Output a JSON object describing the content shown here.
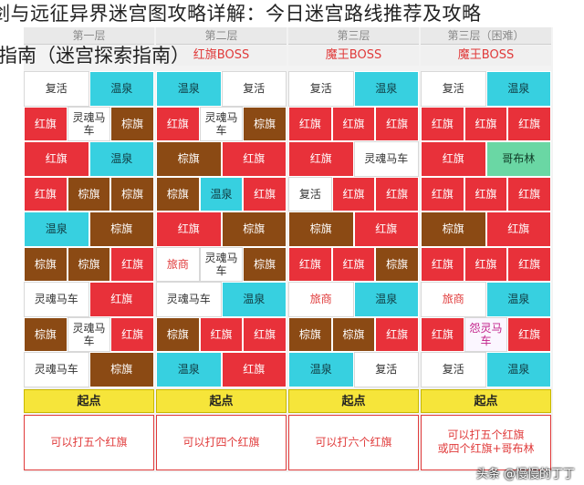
{
  "title": {
    "line1": "剑与远征异界迷宫图攻略详解：今日迷宫路线推荐及攻略",
    "line2": "指南（迷宫探索指南）"
  },
  "watermark": "头条 @慢慢的丁丁",
  "columns": [
    {
      "header": "第一层",
      "boss": "",
      "rows": [
        [
          "复活",
          "温泉"
        ],
        [
          "红旗",
          "灵魂马车",
          "棕旗"
        ],
        [
          "红旗",
          "温泉"
        ],
        [
          "红旗",
          "棕旗",
          "棕旗"
        ],
        [
          "温泉",
          "棕旗"
        ],
        [
          "棕旗",
          "棕旗",
          "红旗"
        ],
        [
          "灵魂马车",
          "红旗"
        ],
        [
          "棕旗",
          "灵魂马车",
          "红旗"
        ],
        [
          "灵魂马车",
          "棕旗"
        ]
      ],
      "start": "起点",
      "note": "可以打五个红旗"
    },
    {
      "header": "第二层",
      "boss": "红旗BOSS",
      "rows": [
        [
          "温泉",
          "复活"
        ],
        [
          "红旗",
          "灵魂马车",
          "棕旗"
        ],
        [
          "棕旗",
          "红旗"
        ],
        [
          "棕旗",
          "温泉",
          "红旗"
        ],
        [
          "红旗",
          "棕旗"
        ],
        [
          "旅商",
          "灵魂马车",
          "棕旗"
        ],
        [
          "灵魂马车",
          "温泉"
        ],
        [
          "棕旗",
          "红旗",
          "红旗"
        ],
        [
          "温泉",
          "红旗"
        ]
      ],
      "start": "起点",
      "note": "可以打四个红旗"
    },
    {
      "header": "第三层",
      "boss": "魔王BOSS",
      "rows": [
        [
          "复活",
          "温泉"
        ],
        [
          "红旗",
          "红旗",
          "红旗"
        ],
        [
          "红旗",
          "灵魂马车"
        ],
        [
          "复活",
          "红旗",
          "红旗"
        ],
        [
          "棕旗",
          "红旗"
        ],
        [
          "红旗",
          "红旗",
          "棕旗"
        ],
        [
          "旅商",
          "温泉"
        ],
        [
          "棕旗",
          "棕旗",
          "红旗"
        ],
        [
          "温泉",
          "复活"
        ]
      ],
      "start": "起点",
      "note": "可以打六个红旗"
    },
    {
      "header": "第三层（困难）",
      "boss": "魔王BOSS",
      "rows": [
        [
          "复活",
          "温泉"
        ],
        [
          "红旗",
          "红旗",
          "红旗"
        ],
        [
          "红旗",
          "哥布林"
        ],
        [
          "红旗",
          "红旗",
          "红旗"
        ],
        [
          "棕旗",
          "红旗"
        ],
        [
          "红旗",
          "红旗",
          "红旗"
        ],
        [
          "旅商",
          "温泉"
        ],
        [
          "红旗",
          "怨灵马车",
          "红旗"
        ],
        [
          "复活",
          "温泉"
        ]
      ],
      "start": "起点",
      "note": "可以打五个红旗\n或四个红旗+哥布林"
    }
  ],
  "colors": {
    "red_flag": "#e8313a",
    "brown_flag": "#8b4a14",
    "hot_spring": "#37d0e0",
    "revive": "#ffffff",
    "goblin": "#6ad7a4",
    "start": "#f6e53a"
  }
}
